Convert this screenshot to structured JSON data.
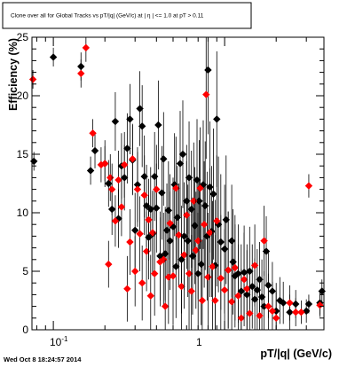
{
  "footer": {
    "timestamp": "Wed Oct  8 18:24:57 2014"
  },
  "chart_data": {
    "type": "scatter",
    "title": "Clone  over all for Global Tracks vs pT/|q| (GeV/c) at |  η  | <= 1.0 at pT > 0.11",
    "xlabel": "pT/|q| (GeV/c)",
    "ylabel": "Efficiency (%)",
    "x_scale": "log",
    "xlim": [
      0.075,
      3.8
    ],
    "ylim": [
      0,
      25
    ],
    "x_tick_labels": [
      {
        "value": 0.1,
        "label": "10",
        "exp": "-1"
      },
      {
        "value": 1,
        "label": "1"
      }
    ],
    "y_ticks": [
      0,
      5,
      10,
      15,
      20,
      25
    ],
    "grid": false,
    "legend": "none",
    "series": [
      {
        "color": "#000000",
        "marker": "diamond",
        "points": [
          [
            0.077,
            14.4,
            0.8
          ],
          [
            0.1,
            23.3,
            0.8
          ],
          [
            0.145,
            22.5,
            1.2
          ],
          [
            0.165,
            13.6,
            1.2
          ],
          [
            0.175,
            15.3,
            1.5
          ],
          [
            0.2,
            14.2,
            2.0
          ],
          [
            0.21,
            12.5,
            2.0
          ],
          [
            0.22,
            10.3,
            2.2
          ],
          [
            0.23,
            17.8,
            2.5
          ],
          [
            0.24,
            9.5,
            2.5
          ],
          [
            0.25,
            14.0,
            2.8
          ],
          [
            0.26,
            13.0,
            2.8
          ],
          [
            0.27,
            15.5,
            3.0
          ],
          [
            0.28,
            18.0,
            3.0
          ],
          [
            0.29,
            14.5,
            3.0
          ],
          [
            0.3,
            8.5,
            3.2
          ],
          [
            0.31,
            12.4,
            3.2
          ],
          [
            0.32,
            18.9,
            3.2
          ],
          [
            0.33,
            17.4,
            3.5
          ],
          [
            0.34,
            13.1,
            3.5
          ],
          [
            0.35,
            10.6,
            3.5
          ],
          [
            0.36,
            7.9,
            3.6
          ],
          [
            0.37,
            10.3,
            3.6
          ],
          [
            0.38,
            8.2,
            3.6
          ],
          [
            0.39,
            13.1,
            3.8
          ],
          [
            0.4,
            10.4,
            3.8
          ],
          [
            0.41,
            17.5,
            3.8
          ],
          [
            0.42,
            6.3,
            3.8
          ],
          [
            0.43,
            11.7,
            4.0
          ],
          [
            0.44,
            14.6,
            4.0
          ],
          [
            0.45,
            6.5,
            4.0
          ],
          [
            0.46,
            8.5,
            4.0
          ],
          [
            0.47,
            10.2,
            4.2
          ],
          [
            0.48,
            7.6,
            4.2
          ],
          [
            0.5,
            8.8,
            4.2
          ],
          [
            0.51,
            12.4,
            4.4
          ],
          [
            0.52,
            5.4,
            4.4
          ],
          [
            0.53,
            9.6,
            4.4
          ],
          [
            0.55,
            14.2,
            4.5
          ],
          [
            0.56,
            6.0,
            4.6
          ],
          [
            0.57,
            15.0,
            4.6
          ],
          [
            0.58,
            8.0,
            4.6
          ],
          [
            0.6,
            11.0,
            4.8
          ],
          [
            0.61,
            7.6,
            4.8
          ],
          [
            0.62,
            13.0,
            4.8
          ],
          [
            0.64,
            10.3,
            5.0
          ],
          [
            0.65,
            6.3,
            5.0
          ],
          [
            0.67,
            8.9,
            5.0
          ],
          [
            0.69,
            12.8,
            5.2
          ],
          [
            0.7,
            4.8,
            5.2
          ],
          [
            0.71,
            11.0,
            5.2
          ],
          [
            0.73,
            5.6,
            5.2
          ],
          [
            0.75,
            12.4,
            5.5
          ],
          [
            0.77,
            10.6,
            5.5
          ],
          [
            0.79,
            8.0,
            5.5
          ],
          [
            0.8,
            22.2,
            5.5
          ],
          [
            0.82,
            12.2,
            5.6
          ],
          [
            0.84,
            8.4,
            5.6
          ],
          [
            0.86,
            11.6,
            5.6
          ],
          [
            0.88,
            5.5,
            5.6
          ],
          [
            0.9,
            18.0,
            5.8
          ],
          [
            0.92,
            9.0,
            5.8
          ],
          [
            0.95,
            7.5,
            5.8
          ],
          [
            1.0,
            6.9,
            5.5
          ],
          [
            1.02,
            9.4,
            5.5
          ],
          [
            1.05,
            5.1,
            5.0
          ],
          [
            1.1,
            7.6,
            4.8
          ],
          [
            1.12,
            5.8,
            4.5
          ],
          [
            1.15,
            4.6,
            4.4
          ],
          [
            1.2,
            4.8,
            4.2
          ],
          [
            1.25,
            3.3,
            4.0
          ],
          [
            1.3,
            4.9,
            4.0
          ],
          [
            1.35,
            3.0,
            3.8
          ],
          [
            1.4,
            5.0,
            3.8
          ],
          [
            1.45,
            3.7,
            3.6
          ],
          [
            1.5,
            2.6,
            3.5
          ],
          [
            1.55,
            3.4,
            3.5
          ],
          [
            1.6,
            4.3,
            3.2
          ],
          [
            1.65,
            2.8,
            3.2
          ],
          [
            1.7,
            2.0,
            3.0
          ],
          [
            1.75,
            6.7,
            3.0
          ],
          [
            1.8,
            3.8,
            2.8
          ],
          [
            1.9,
            3.3,
            2.5
          ],
          [
            2.0,
            1.6,
            2.4
          ],
          [
            2.1,
            2.5,
            2.0
          ],
          [
            2.2,
            2.3,
            1.8
          ],
          [
            2.4,
            1.5,
            1.5
          ],
          [
            2.6,
            2.2,
            1.2
          ],
          [
            3.0,
            1.6,
            1.0
          ],
          [
            3.1,
            2.2,
            0.8
          ],
          [
            3.6,
            2.3,
            1.0
          ],
          [
            3.7,
            3.3,
            1.0
          ]
        ]
      },
      {
        "color": "#ff0000",
        "marker": "diamond",
        "points": [
          [
            0.076,
            21.4,
            0.8
          ],
          [
            0.145,
            21.9,
            1.2
          ],
          [
            0.155,
            24.1,
            1.2
          ],
          [
            0.17,
            16.8,
            1.2
          ],
          [
            0.19,
            14.1,
            1.5
          ],
          [
            0.2,
            14.2,
            1.5
          ],
          [
            0.21,
            5.6,
            2.0
          ],
          [
            0.215,
            13.0,
            2.0
          ],
          [
            0.22,
            12.0,
            2.2
          ],
          [
            0.23,
            9.3,
            2.2
          ],
          [
            0.24,
            12.8,
            2.5
          ],
          [
            0.25,
            10.5,
            2.5
          ],
          [
            0.26,
            14.1,
            2.8
          ],
          [
            0.27,
            3.5,
            2.8
          ],
          [
            0.28,
            7.5,
            2.8
          ],
          [
            0.29,
            14.6,
            3.0
          ],
          [
            0.3,
            5.0,
            3.0
          ],
          [
            0.31,
            12.0,
            3.2
          ],
          [
            0.32,
            8.2,
            3.2
          ],
          [
            0.33,
            4.0,
            3.2
          ],
          [
            0.34,
            11.5,
            3.4
          ],
          [
            0.35,
            6.7,
            3.4
          ],
          [
            0.36,
            9.4,
            3.5
          ],
          [
            0.37,
            2.9,
            3.5
          ],
          [
            0.38,
            8.3,
            3.6
          ],
          [
            0.39,
            4.8,
            3.6
          ],
          [
            0.4,
            12.0,
            3.8
          ],
          [
            0.42,
            5.8,
            3.8
          ],
          [
            0.44,
            6.0,
            4.0
          ],
          [
            0.45,
            2.0,
            4.0
          ],
          [
            0.47,
            4.5,
            4.0
          ],
          [
            0.48,
            9.1,
            4.2
          ],
          [
            0.5,
            4.6,
            4.2
          ],
          [
            0.52,
            12.1,
            4.4
          ],
          [
            0.54,
            8.1,
            4.4
          ],
          [
            0.56,
            3.7,
            4.5
          ],
          [
            0.58,
            6.4,
            4.6
          ],
          [
            0.6,
            9.8,
            4.6
          ],
          [
            0.62,
            4.8,
            4.8
          ],
          [
            0.64,
            3.3,
            4.8
          ],
          [
            0.66,
            11.0,
            5.0
          ],
          [
            0.68,
            6.8,
            5.0
          ],
          [
            0.7,
            7.6,
            5.0
          ],
          [
            0.72,
            12.1,
            5.2
          ],
          [
            0.74,
            2.5,
            5.2
          ],
          [
            0.76,
            9.0,
            5.4
          ],
          [
            0.78,
            20.1,
            5.5
          ],
          [
            0.8,
            4.5,
            5.5
          ],
          [
            0.82,
            8.3,
            5.5
          ],
          [
            0.85,
            5.4,
            5.6
          ],
          [
            0.88,
            2.5,
            5.6
          ],
          [
            0.9,
            9.3,
            5.6
          ],
          [
            0.95,
            4.4,
            5.4
          ],
          [
            1.0,
            3.4,
            5.2
          ],
          [
            1.05,
            5.1,
            5.0
          ],
          [
            1.1,
            2.4,
            4.8
          ],
          [
            1.15,
            5.3,
            4.5
          ],
          [
            1.2,
            2.9,
            4.4
          ],
          [
            1.25,
            1.0,
            4.2
          ],
          [
            1.3,
            4.3,
            4.0
          ],
          [
            1.35,
            3.5,
            3.8
          ],
          [
            1.4,
            1.4,
            3.6
          ],
          [
            1.5,
            5.5,
            3.5
          ],
          [
            1.6,
            1.2,
            3.2
          ],
          [
            1.7,
            7.6,
            3.0
          ],
          [
            1.8,
            2.0,
            2.8
          ],
          [
            1.9,
            1.6,
            2.5
          ],
          [
            2.0,
            1.0,
            2.2
          ],
          [
            2.4,
            2.3,
            1.5
          ],
          [
            2.6,
            1.5,
            1.2
          ],
          [
            2.8,
            1.5,
            1.0
          ],
          [
            3.1,
            12.3,
            1.0
          ],
          [
            3.6,
            2.1,
            1.0
          ]
        ]
      }
    ]
  }
}
